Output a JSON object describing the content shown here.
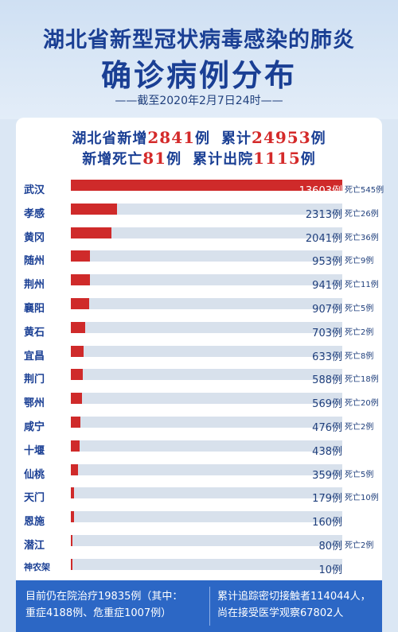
{
  "header": {
    "title_line1": "湖北省新型冠状病毒感染的肺炎",
    "title_line2": "确诊病例分布",
    "dateline": "——截至2020年2月7日24时——"
  },
  "summary": {
    "line1": {
      "label_a": "湖北省新增",
      "new_cases": "2841",
      "unit_a": "例",
      "label_b": "累计",
      "total_cases": "24953",
      "unit_b": "例"
    },
    "line2": {
      "label_a": "新增死亡",
      "new_deaths": "81",
      "unit_a": "例",
      "label_b": "累计出院",
      "total_discharged": "1115",
      "unit_b": "例"
    }
  },
  "chart_data": {
    "type": "bar",
    "orientation": "horizontal",
    "max_value": 13603,
    "categories": [
      "武汉",
      "孝感",
      "黄冈",
      "随州",
      "荆州",
      "襄阳",
      "黄石",
      "宜昌",
      "荆门",
      "鄂州",
      "咸宁",
      "十堰",
      "仙桃",
      "天门",
      "恩施",
      "潜江",
      "神农架"
    ],
    "values": [
      13603,
      2313,
      2041,
      953,
      941,
      907,
      703,
      633,
      588,
      569,
      476,
      438,
      359,
      179,
      160,
      80,
      10
    ],
    "value_labels": [
      "13603例",
      "2313例",
      "2041例",
      "953例",
      "941例",
      "907例",
      "703例",
      "633例",
      "588例",
      "569例",
      "476例",
      "438例",
      "359例",
      "179例",
      "160例",
      "80例",
      "10例"
    ],
    "death_labels": [
      "死亡545例",
      "死亡26例",
      "死亡36例",
      "死亡9例",
      "死亡11例",
      "死亡5例",
      "死亡2例",
      "死亡8例",
      "死亡18例",
      "死亡20例",
      "死亡2例",
      "",
      "死亡5例",
      "死亡10例",
      "",
      "死亡2例",
      ""
    ],
    "colors": {
      "bar": "#cf2a2a",
      "track": "#d8e1ec"
    }
  },
  "footer": {
    "left_line1": "目前仍在院治疗19835例（其中：",
    "left_line2": "重症4188例、危重症1007例）",
    "right_line1": "累计追踪密切接触者114044人，",
    "right_line2": "尚在接受医学观察67802人"
  }
}
